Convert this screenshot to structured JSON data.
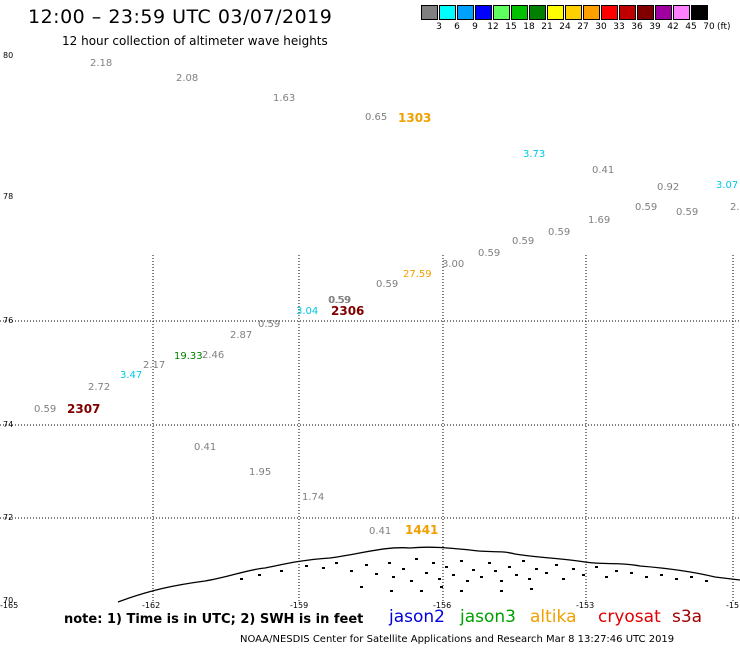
{
  "title": "12:00 – 23:59 UTC 03/07/2019",
  "subtitle": "12 hour collection of altimeter wave heights",
  "scale": {
    "swatches": [
      {
        "label": "3",
        "color": "#808080"
      },
      {
        "label": "6",
        "color": "#00ffff"
      },
      {
        "label": "9",
        "color": "#00a0ff"
      },
      {
        "label": "12",
        "color": "#0000ff"
      },
      {
        "label": "15",
        "color": "#60ff60"
      },
      {
        "label": "18",
        "color": "#00c000"
      },
      {
        "label": "21",
        "color": "#008000"
      },
      {
        "label": "24",
        "color": "#ffff00"
      },
      {
        "label": "27",
        "color": "#ffd000"
      },
      {
        "label": "30",
        "color": "#ffa000"
      },
      {
        "label": "33",
        "color": "#ff0000"
      },
      {
        "label": "36",
        "color": "#c00000"
      },
      {
        "label": "39",
        "color": "#800000"
      },
      {
        "label": "42",
        "color": "#a000a0"
      },
      {
        "label": "45",
        "color": "#ff80ff"
      },
      {
        "label": "70",
        "color": "#000000"
      }
    ],
    "unit": "(ft)"
  },
  "lat_labels": [
    "80",
    "78",
    "76",
    "74",
    "72",
    "70"
  ],
  "lon_labels": [
    "-165",
    "-162",
    "-159",
    "-156",
    "-153",
    "-15"
  ],
  "observations": [
    {
      "v": "2.18",
      "c": "#808080"
    },
    {
      "v": "2.08",
      "c": "#808080"
    },
    {
      "v": "1.63",
      "c": "#808080"
    },
    {
      "v": "0.65",
      "c": "#808080"
    },
    {
      "v": "3.73",
      "c": "#00c8e8"
    },
    {
      "v": "0.41",
      "c": "#808080"
    },
    {
      "v": "0.92",
      "c": "#808080"
    },
    {
      "v": "3.07",
      "c": "#00c8e8"
    },
    {
      "v": "0.59",
      "c": "#808080"
    },
    {
      "v": "0.59",
      "c": "#808080"
    },
    {
      "v": "2.",
      "c": "#808080"
    },
    {
      "v": "1.69",
      "c": "#808080"
    },
    {
      "v": "0.59",
      "c": "#808080"
    },
    {
      "v": "0.59",
      "c": "#808080"
    },
    {
      "v": "0.59",
      "c": "#808080"
    },
    {
      "v": "3.00",
      "c": "#808080"
    },
    {
      "v": "27.59",
      "c": "#f0a000"
    },
    {
      "v": "0.59",
      "c": "#808080"
    },
    {
      "v": "0.59",
      "c": "#808080"
    },
    {
      "v": "3.04",
      "c": "#00c8e8"
    },
    {
      "v": "0.59",
      "c": "#808080"
    },
    {
      "v": "0.59",
      "c": "#808080"
    },
    {
      "v": "2.87",
      "c": "#808080"
    },
    {
      "v": "2.46",
      "c": "#808080"
    },
    {
      "v": "19.33",
      "c": "#008000"
    },
    {
      "v": "2.17",
      "c": "#808080"
    },
    {
      "v": "3.47",
      "c": "#00c8e8"
    },
    {
      "v": "2.72",
      "c": "#808080"
    },
    {
      "v": "0.59",
      "c": "#808080"
    },
    {
      "v": "0.41",
      "c": "#808080"
    },
    {
      "v": "1.95",
      "c": "#808080"
    },
    {
      "v": "1.74",
      "c": "#808080"
    },
    {
      "v": "0.41",
      "c": "#808080"
    }
  ],
  "times": [
    {
      "t": "1303",
      "c": "#f0a000"
    },
    {
      "t": "2306",
      "c": "#800000"
    },
    {
      "t": "2307",
      "c": "#800000"
    },
    {
      "t": "1441",
      "c": "#f0a000"
    }
  ],
  "note": "note: 1) Time is in UTC; 2) SWH is in feet",
  "satellites": [
    {
      "name": "jason2",
      "color": "#0000e0"
    },
    {
      "name": "jason3",
      "color": "#00a000"
    },
    {
      "name": "altika",
      "color": "#f0a000"
    },
    {
      "name": "cryosat",
      "color": "#e00000"
    },
    {
      "name": "s3a",
      "color": "#a00000"
    }
  ],
  "footer": "NOAA/NESDIS Center for Satellite Applications and Research   Mar  8 13:27:46 UTC 2019"
}
